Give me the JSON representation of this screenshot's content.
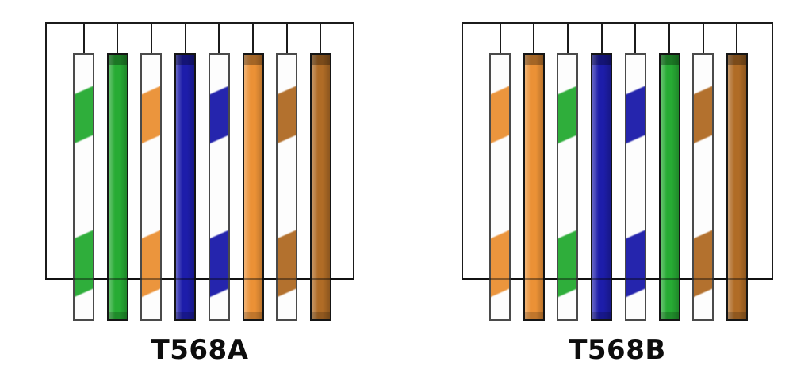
{
  "page": {
    "background": "#ffffff"
  },
  "colors": {
    "green": "#27ab34",
    "orange": "#eb9136",
    "blue": "#1d1daa",
    "brown": "#b06c26",
    "line": "#1b1b1b",
    "label_ink": "#0d0d0d"
  },
  "diagrams": [
    {
      "label": "T568A",
      "pins": [
        {
          "name": "white-green",
          "solid": false,
          "color": "green"
        },
        {
          "name": "green",
          "solid": true,
          "color": "green"
        },
        {
          "name": "white-orange",
          "solid": false,
          "color": "orange"
        },
        {
          "name": "blue",
          "solid": true,
          "color": "blue"
        },
        {
          "name": "white-blue",
          "solid": false,
          "color": "blue"
        },
        {
          "name": "orange",
          "solid": true,
          "color": "orange"
        },
        {
          "name": "white-brown",
          "solid": false,
          "color": "brown"
        },
        {
          "name": "brown",
          "solid": true,
          "color": "brown"
        }
      ]
    },
    {
      "label": "T568B",
      "pins": [
        {
          "name": "white-orange",
          "solid": false,
          "color": "orange"
        },
        {
          "name": "orange",
          "solid": true,
          "color": "orange"
        },
        {
          "name": "white-green",
          "solid": false,
          "color": "green"
        },
        {
          "name": "blue",
          "solid": true,
          "color": "blue"
        },
        {
          "name": "white-blue",
          "solid": false,
          "color": "blue"
        },
        {
          "name": "green",
          "solid": true,
          "color": "green"
        },
        {
          "name": "white-brown",
          "solid": false,
          "color": "brown"
        },
        {
          "name": "brown",
          "solid": true,
          "color": "brown"
        }
      ]
    }
  ]
}
